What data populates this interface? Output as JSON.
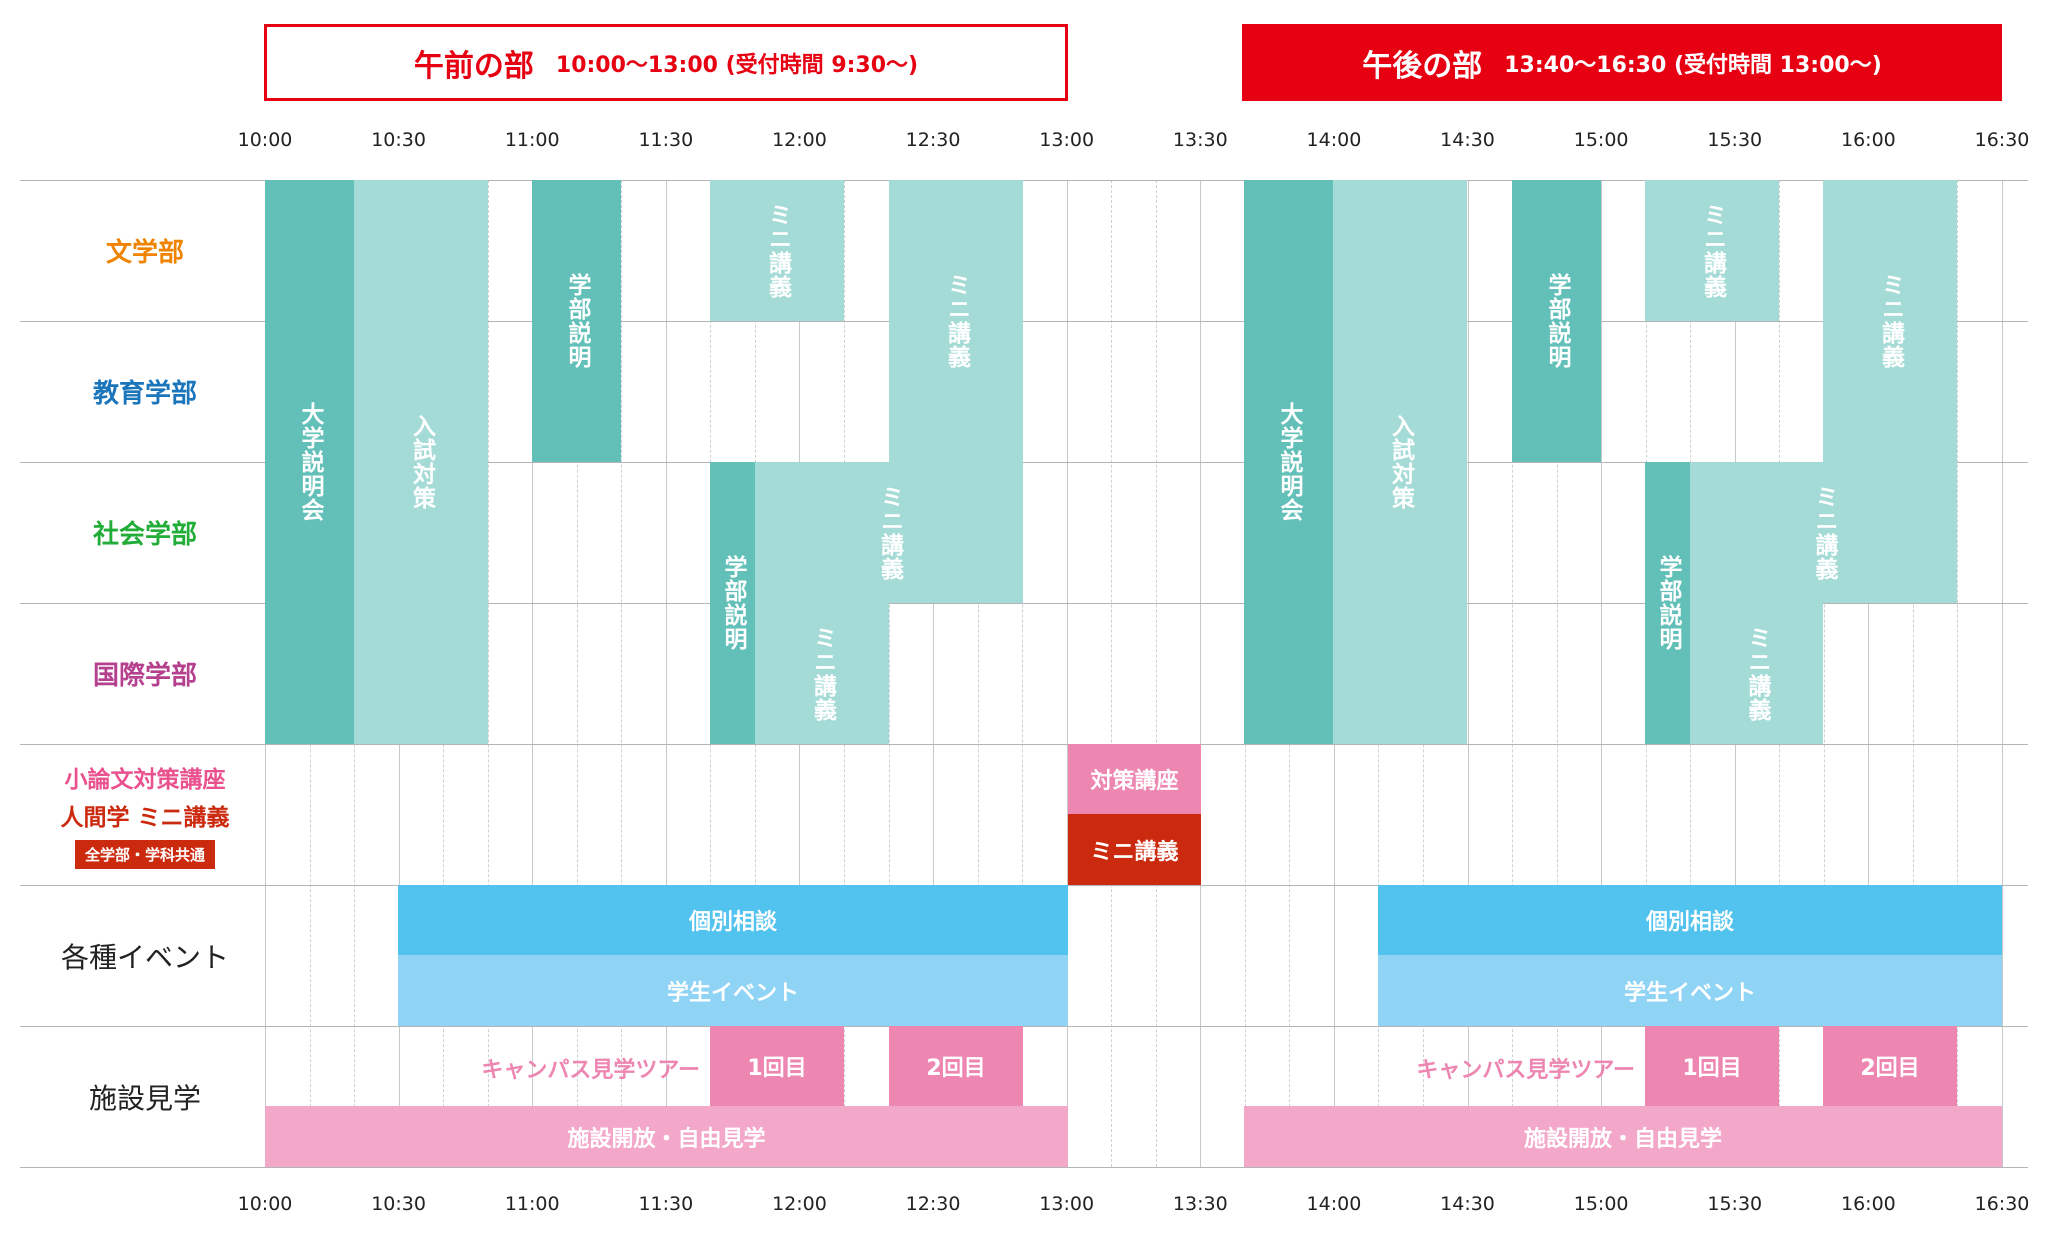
{
  "headers": {
    "am": {
      "title": "午前の部",
      "time": "10:00〜13:00 (受付時間 9:30〜)"
    },
    "pm": {
      "title": "午後の部",
      "time": "13:40〜16:30 (受付時間 13:00〜)"
    }
  },
  "times": [
    "10:00",
    "10:30",
    "11:00",
    "11:30",
    "12:00",
    "12:30",
    "13:00",
    "13:30",
    "14:00",
    "14:30",
    "15:00",
    "15:30",
    "16:00",
    "16:30"
  ],
  "rows": {
    "bungaku": {
      "label": "文学部",
      "color": "#f08300"
    },
    "kyoiku": {
      "label": "教育学部",
      "color": "#1a75bb"
    },
    "shakai": {
      "label": "社会学部",
      "color": "#22ac38"
    },
    "kokusai": {
      "label": "国際学部",
      "color": "#b5418e"
    },
    "koza": {
      "line1": "小論文対策講座",
      "line1_color": "#e9528e",
      "line2": "人間学 ミニ講義",
      "line2_color": "#cc2a0f",
      "badge": "全学部・学科共通"
    },
    "events": {
      "label": "各種イベント"
    },
    "facility": {
      "label": "施設見学"
    }
  },
  "blocks": {
    "daigaku_setsumei": "大学説明会",
    "nyushi_taisaku": "入試対策",
    "gakubu_setsumei": "学部説明",
    "mini_kogi": "ミニ講義",
    "taisaku_koza": "対策講座",
    "kobetsu_sodan": "個別相談",
    "gakusei_event": "学生イベント",
    "campus_tour": "キャンパス見学ツアー",
    "round1": "1回目",
    "round2": "2回目",
    "shisetsu_kaiho": "施設開放・自由見学"
  },
  "colors": {
    "brand_red": "#e60012",
    "teal_dark": "#62c0b9",
    "teal_light": "#a5dbd6",
    "blue_dark": "#52c2ee",
    "blue_light": "#8fd3f5",
    "pink_dark": "#ee86b2",
    "pink_light": "#f4a8c9",
    "red_brown": "#cc2a0f"
  }
}
